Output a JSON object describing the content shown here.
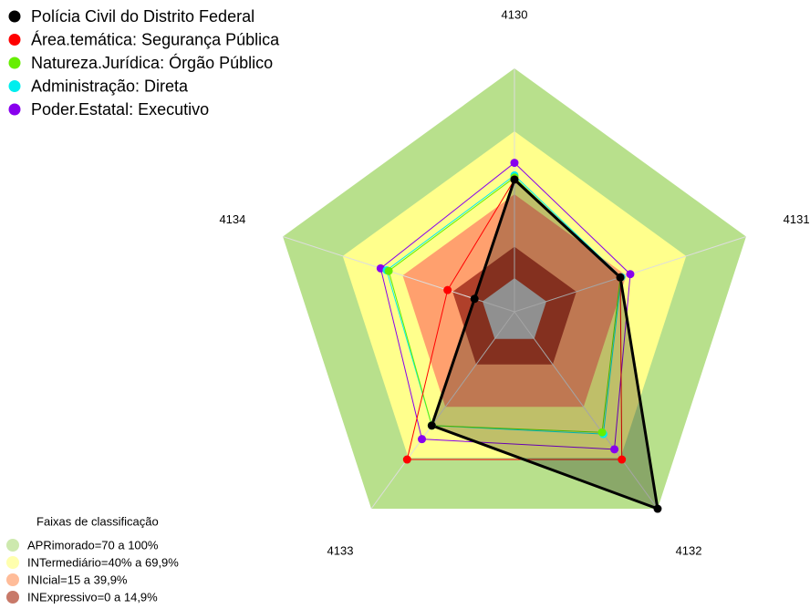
{
  "chart_data": {
    "type": "radar",
    "categories": [
      "4130",
      "4131",
      "4132",
      "4133",
      "4134"
    ],
    "rlim": [
      -16,
      100
    ],
    "series": [
      {
        "name": "Polícia Civil do Distrito Federal",
        "color": "#000000",
        "values": [
          47,
          37,
          100,
          51,
          4
        ]
      },
      {
        "name": "Área.temática: Segurança Pública",
        "color": "#ff0000",
        "values": [
          47,
          37,
          71,
          71,
          17.5
        ]
      },
      {
        "name": "Natureza.Jurídica: Órgão Público",
        "color": "#66ee00",
        "values": [
          48,
          37,
          55,
          51,
          47
        ]
      },
      {
        "name": "Administração: Direta",
        "color": "#00eeee",
        "values": [
          49,
          37.5,
          56,
          51,
          48
        ]
      },
      {
        "name": "Poder.Estatal: Executivo",
        "color": "#8800ee",
        "values": [
          55,
          42,
          65,
          59,
          51
        ]
      }
    ],
    "bands_title": "Faixas de classificação",
    "bands": [
      {
        "label": "APRimorado=70 a 100%",
        "from": 70,
        "to": 100,
        "color": "#b8e08c"
      },
      {
        "label": "INTermediário=40% a 69,9%",
        "from": 40,
        "to": 70,
        "color": "#ffff8c"
      },
      {
        "label": "INIcial=15 a 39,9%",
        "from": 15,
        "to": 40,
        "color": "#ffa06e"
      },
      {
        "label": "INExpressivo=0 a 14,9%",
        "from": 0,
        "to": 15,
        "color": "#b0402a"
      }
    ]
  }
}
